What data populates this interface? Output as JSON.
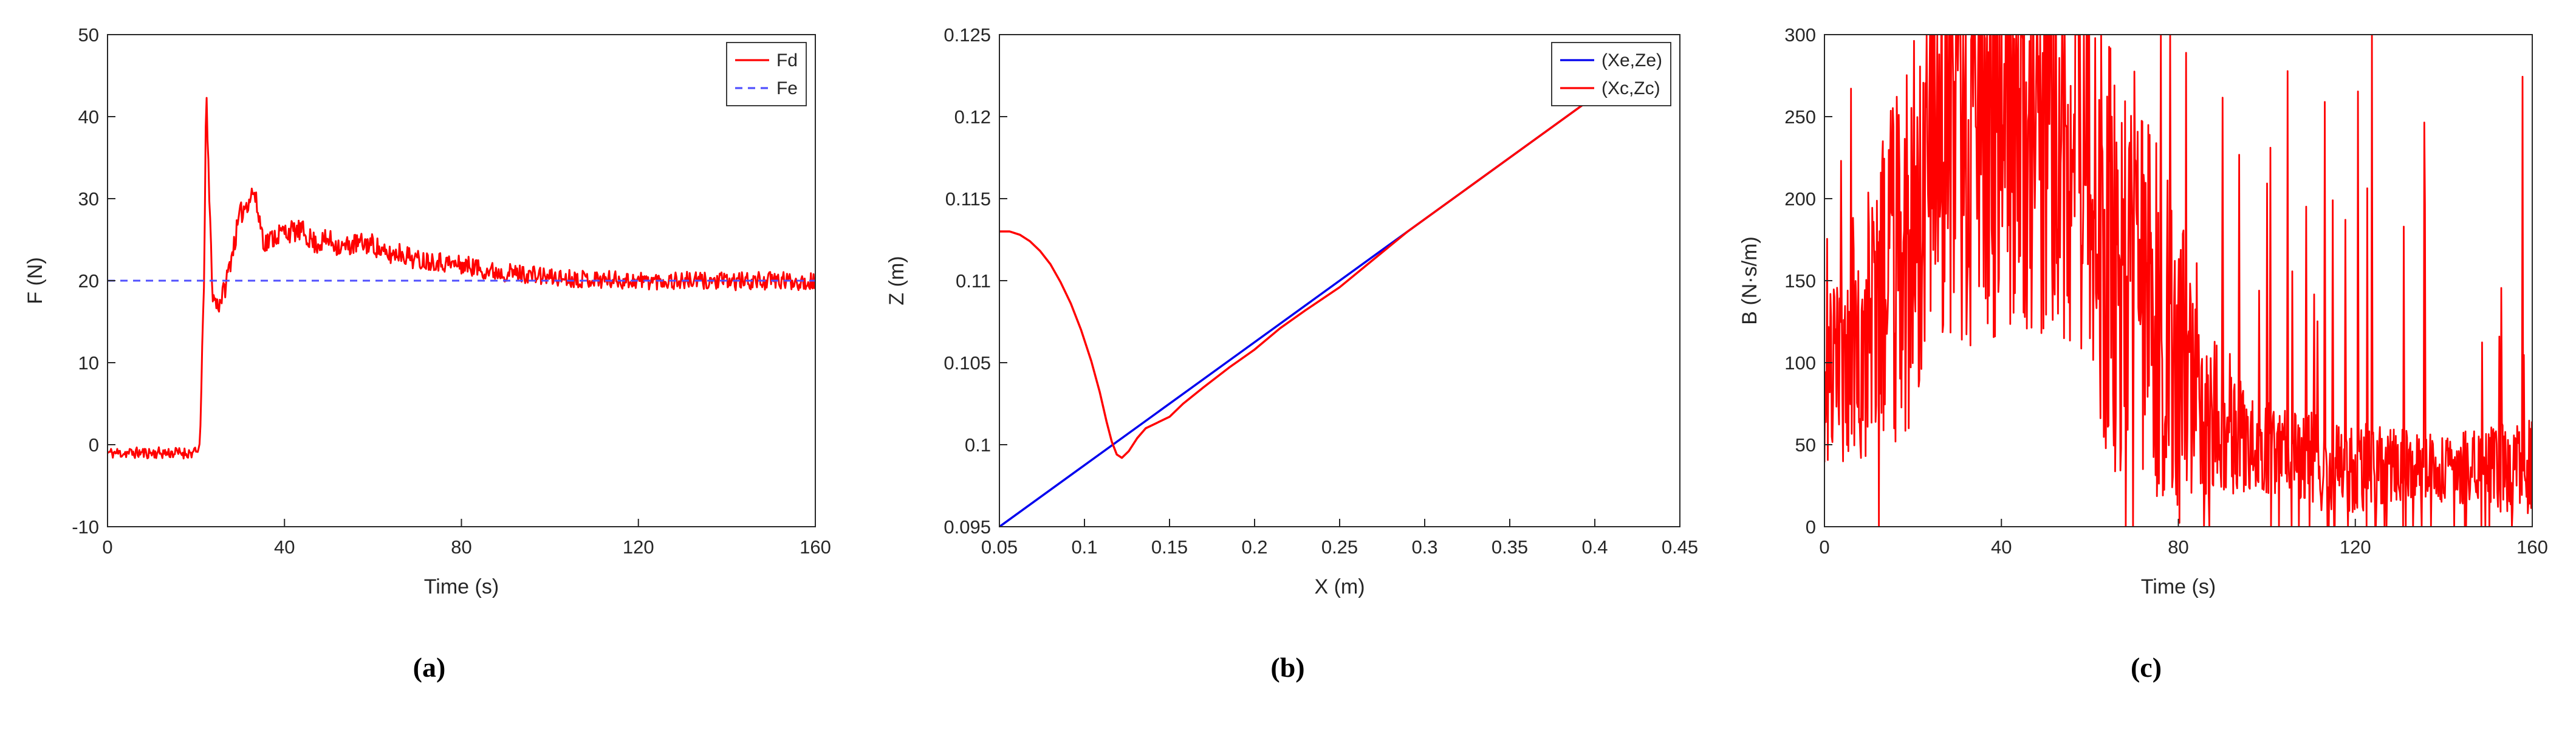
{
  "page": {
    "background": "#ffffff"
  },
  "captions": [
    "(a)",
    "(b)",
    "(c)"
  ],
  "chart_data": [
    {
      "type": "line",
      "title": "",
      "xlabel": "Time (s)",
      "ylabel": "F (N)",
      "xlim": [
        0,
        160
      ],
      "ylim": [
        -10,
        50
      ],
      "xticks": [
        0,
        40,
        80,
        120,
        160
      ],
      "xtick_labels": [
        "0",
        "40",
        "80",
        "120",
        "160"
      ],
      "yticks": [
        -10,
        0,
        10,
        20,
        30,
        40,
        50
      ],
      "ytick_labels": [
        "-10",
        "0",
        "10",
        "20",
        "30",
        "40",
        "50"
      ],
      "grid": false,
      "margins": {
        "l": 160,
        "r": 55,
        "t": 45,
        "b": 195
      },
      "ylabel_offset": 108,
      "legend": {
        "position": "top-right",
        "entries": [
          {
            "label": "Fd",
            "color": "#ff0000",
            "dash": ""
          },
          {
            "label": "Fe",
            "color": "#5050ff",
            "dash": "12 9"
          }
        ]
      },
      "series": [
        {
          "name": "Fd",
          "color": "#ff0000",
          "width": 3,
          "gen": {
            "seed": 11,
            "x_start": 0,
            "x_end": 160,
            "dx": 0.2,
            "trend": [
              [
                0,
                -1
              ],
              [
                20.5,
                -1
              ],
              [
                21,
                2
              ],
              [
                21.8,
                20
              ],
              [
                22.3,
                43
              ],
              [
                23,
                30
              ],
              [
                23.8,
                18
              ],
              [
                25,
                17
              ],
              [
                26.5,
                19
              ],
              [
                28,
                23
              ],
              [
                30,
                28
              ],
              [
                33,
                31
              ],
              [
                35.5,
                24.5
              ],
              [
                38,
                25.5
              ],
              [
                40,
                26
              ],
              [
                44,
                26
              ],
              [
                47,
                24.5
              ],
              [
                50,
                25
              ],
              [
                53,
                24
              ],
              [
                56,
                24.5
              ],
              [
                60,
                24.5
              ],
              [
                63,
                23
              ],
              [
                66,
                23.5
              ],
              [
                70,
                22.5
              ],
              [
                74,
                22.5
              ],
              [
                78,
                22
              ],
              [
                82,
                21.8
              ],
              [
                86,
                21.2
              ],
              [
                90,
                21
              ],
              [
                95,
                20.8
              ],
              [
                100,
                20.4
              ],
              [
                110,
                20.2
              ],
              [
                120,
                20
              ],
              [
                130,
                20
              ],
              [
                140,
                19.9
              ],
              [
                150,
                20
              ],
              [
                160,
                19.9
              ]
            ],
            "noise_amp": [
              [
                0,
                0.7
              ],
              [
                20,
                0.7
              ],
              [
                22,
                1.2
              ],
              [
                30,
                1.4
              ],
              [
                60,
                1.3
              ],
              [
                100,
                1.1
              ],
              [
                160,
                1.1
              ]
            ],
            "clip": [
              -10,
              50
            ]
          }
        },
        {
          "name": "Fe",
          "color": "#5050ff",
          "width": 3,
          "dash": "12 9",
          "x": [
            0,
            160
          ],
          "y": [
            20,
            20
          ]
        }
      ]
    },
    {
      "type": "line",
      "title": "",
      "xlabel": "X (m)",
      "ylabel": "Z (m)",
      "xlim": [
        0.05,
        0.45
      ],
      "ylim": [
        0.095,
        0.125
      ],
      "xticks": [
        0.05,
        0.1,
        0.15,
        0.2,
        0.25,
        0.3,
        0.35,
        0.4,
        0.45
      ],
      "xtick_labels": [
        "0.05",
        "0.1",
        "0.15",
        "0.2",
        "0.25",
        "0.3",
        "0.35",
        "0.4",
        "0.45"
      ],
      "yticks": [
        0.095,
        0.1,
        0.105,
        0.11,
        0.115,
        0.12,
        0.125
      ],
      "ytick_labels": [
        "0.095",
        "0.1",
        "0.105",
        "0.11",
        "0.115",
        "0.12",
        "0.125"
      ],
      "grid": false,
      "margins": {
        "l": 215,
        "r": 45,
        "t": 45,
        "b": 195
      },
      "ylabel_offset": 158,
      "legend": {
        "position": "top-right",
        "entries": [
          {
            "label": "(Xe,Ze)",
            "color": "#0000ee",
            "dash": ""
          },
          {
            "label": "(Xc,Zc)",
            "color": "#ff0000",
            "dash": ""
          }
        ]
      },
      "series": [
        {
          "name": "(Xe,Ze)",
          "color": "#0000ee",
          "width": 3.5,
          "x": [
            0.05,
            0.434
          ],
          "y": [
            0.095,
            0.1238
          ]
        },
        {
          "name": "(Xc,Zc)",
          "color": "#ff0000",
          "width": 3.5,
          "points": [
            [
              0.05,
              0.113
            ],
            [
              0.056,
              0.113
            ],
            [
              0.062,
              0.1128
            ],
            [
              0.068,
              0.1124
            ],
            [
              0.074,
              0.1118
            ],
            [
              0.08,
              0.111
            ],
            [
              0.086,
              0.1099
            ],
            [
              0.092,
              0.1086
            ],
            [
              0.098,
              0.107
            ],
            [
              0.104,
              0.1051
            ],
            [
              0.109,
              0.1032
            ],
            [
              0.113,
              0.1014
            ],
            [
              0.116,
              0.1002
            ],
            [
              0.119,
              0.0994
            ],
            [
              0.122,
              0.0992
            ],
            [
              0.126,
              0.0996
            ],
            [
              0.131,
              0.1004
            ],
            [
              0.136,
              0.101
            ],
            [
              0.142,
              0.1013
            ],
            [
              0.15,
              0.1017
            ],
            [
              0.158,
              0.1025
            ],
            [
              0.17,
              0.1035
            ],
            [
              0.185,
              0.1047
            ],
            [
              0.2,
              0.1058
            ],
            [
              0.215,
              0.1071
            ],
            [
              0.23,
              0.1082
            ],
            [
              0.25,
              0.1096
            ],
            [
              0.27,
              0.1113
            ],
            [
              0.29,
              0.113
            ],
            [
              0.31,
              0.1145
            ],
            [
              0.35,
              0.1175
            ],
            [
              0.4,
              0.12125
            ],
            [
              0.434,
              0.1238
            ]
          ]
        }
      ]
    },
    {
      "type": "line",
      "title": "",
      "xlabel": "Time (s)",
      "ylabel": "B (N·s/m)",
      "xlim": [
        0,
        160
      ],
      "ylim": [
        0,
        300
      ],
      "xticks": [
        0,
        40,
        80,
        120,
        160
      ],
      "xtick_labels": [
        "0",
        "40",
        "80",
        "120",
        "160"
      ],
      "yticks": [
        0,
        50,
        100,
        150,
        200,
        250,
        300
      ],
      "ytick_labels": [
        "0",
        "50",
        "100",
        "150",
        "200",
        "250",
        "300"
      ],
      "grid": false,
      "margins": {
        "l": 160,
        "r": 55,
        "t": 45,
        "b": 195
      },
      "ylabel_offset": 112,
      "legend": null,
      "series": [
        {
          "name": "B",
          "color": "#ff0000",
          "width": 2.8,
          "gen": {
            "seed": 23,
            "x_start": 0,
            "x_end": 160,
            "dx": 0.15,
            "trend": [
              [
                0,
                80
              ],
              [
                5,
                110
              ],
              [
                10,
                130
              ],
              [
                18,
                170
              ],
              [
                25,
                255
              ],
              [
                40,
                270
              ],
              [
                52,
                265
              ],
              [
                58,
                230
              ],
              [
                65,
                165
              ],
              [
                72,
                140
              ],
              [
                80,
                105
              ],
              [
                88,
                72
              ],
              [
                95,
                55
              ],
              [
                105,
                45
              ],
              [
                112,
                40
              ],
              [
                120,
                36
              ],
              [
                130,
                38
              ],
              [
                140,
                35
              ],
              [
                150,
                36
              ],
              [
                160,
                36
              ]
            ],
            "noise_amp": [
              [
                0,
                50
              ],
              [
                5,
                70
              ],
              [
                10,
                90
              ],
              [
                18,
                120
              ],
              [
                25,
                150
              ],
              [
                52,
                160
              ],
              [
                58,
                150
              ],
              [
                65,
                130
              ],
              [
                72,
                120
              ],
              [
                80,
                95
              ],
              [
                88,
                55
              ],
              [
                95,
                35
              ],
              [
                105,
                25
              ],
              [
                112,
                30
              ],
              [
                120,
                28
              ],
              [
                130,
                22
              ],
              [
                140,
                20
              ],
              [
                150,
                26
              ],
              [
                160,
                30
              ]
            ],
            "spike_prob": [
              [
                0,
                0.03
              ],
              [
                20,
                0.04
              ],
              [
                60,
                0.05
              ],
              [
                80,
                0.06
              ],
              [
                95,
                0.04
              ],
              [
                108,
                0.08
              ],
              [
                128,
                0.06
              ],
              [
                143,
                0.09
              ],
              [
                160,
                0.09
              ]
            ],
            "spike_amp": [
              [
                0,
                130
              ],
              [
                20,
                110
              ],
              [
                60,
                160
              ],
              [
                80,
                210
              ],
              [
                100,
                265
              ],
              [
                160,
                265
              ]
            ],
            "clip": [
              0,
              300
            ]
          }
        }
      ]
    }
  ]
}
